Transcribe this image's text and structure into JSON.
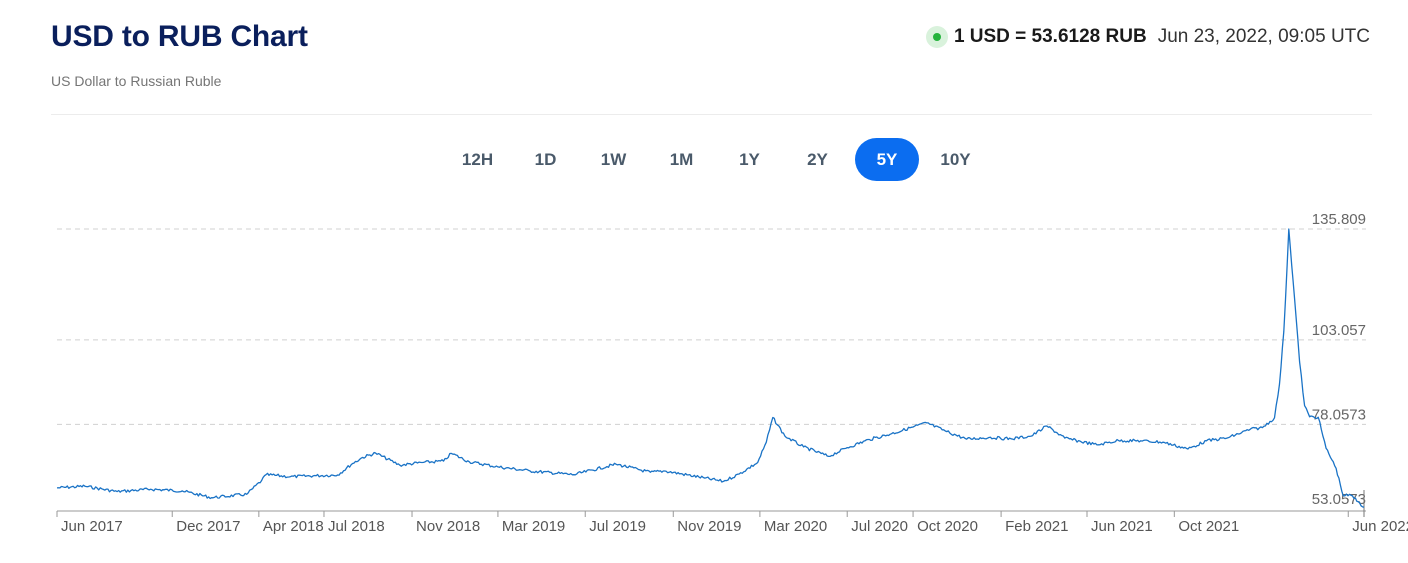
{
  "header": {
    "title": "USD to RUB Chart",
    "subtitle": "US Dollar to Russian Ruble",
    "rate": "1 USD = 53.6128 RUB",
    "timestamp": "Jun 23, 2022, 09:05 UTC",
    "live_indicator_color": "#25b33c"
  },
  "periods": [
    "12H",
    "1D",
    "1W",
    "1M",
    "1Y",
    "2Y",
    "5Y",
    "10Y"
  ],
  "active_period": "5Y",
  "colors": {
    "line": "#1a73c6",
    "active_button": "#0b6df0"
  },
  "chart_data": {
    "type": "line",
    "y_ticks": [
      "135.809",
      "103.057",
      "78.0573",
      "53.0573"
    ],
    "x_tick_labels": [
      "Jun 2017",
      "Dec 2017",
      "Apr 2018",
      "Jul 2018",
      "Nov 2018",
      "Mar 2019",
      "Jul 2019",
      "Nov 2019",
      "Mar 2020",
      "Jul 2020",
      "Oct 2020",
      "Feb 2021",
      "Jun 2021",
      "Oct 2021",
      "Jun 2022"
    ],
    "ylim": [
      53.0573,
      135.809
    ],
    "grid": "horizontal dashed",
    "series": [
      {
        "x": [
          "2017-06-23",
          "2017-08-01",
          "2017-09-15",
          "2017-11-01",
          "2017-12-15",
          "2018-01-25",
          "2018-03-15",
          "2018-04-05",
          "2018-04-11",
          "2018-05-15",
          "2018-06-20",
          "2018-07-20",
          "2018-08-10",
          "2018-08-24",
          "2018-09-11",
          "2018-10-15",
          "2018-11-15",
          "2018-12-15",
          "2018-12-26",
          "2019-01-20",
          "2019-03-01",
          "2019-04-15",
          "2019-06-15",
          "2019-08-13",
          "2019-09-30",
          "2019-10-20",
          "2019-12-15",
          "2020-01-10",
          "2020-02-01",
          "2020-02-27",
          "2020-03-10",
          "2020-03-19",
          "2020-04-05",
          "2020-05-01",
          "2020-06-05",
          "2020-07-01",
          "2020-08-01",
          "2020-09-01",
          "2020-10-01",
          "2020-10-20",
          "2020-11-15",
          "2020-12-15",
          "2021-01-15",
          "2021-02-15",
          "2021-03-15",
          "2021-04-06",
          "2021-05-01",
          "2021-06-15",
          "2021-07-15",
          "2021-08-15",
          "2021-09-15",
          "2021-10-20",
          "2021-11-15",
          "2021-12-15",
          "2022-01-15",
          "2022-02-01",
          "2022-02-18",
          "2022-02-25",
          "2022-03-03",
          "2022-03-10",
          "2022-03-20",
          "2022-03-25",
          "2022-04-01",
          "2022-04-08",
          "2022-04-20",
          "2022-05-01",
          "2022-05-15",
          "2022-05-25",
          "2022-06-05",
          "2022-06-15",
          "2022-06-23"
        ],
        "y": [
          59.3,
          59.8,
          58.2,
          58.9,
          58.4,
          56.4,
          57.4,
          61.5,
          63.2,
          62.6,
          62.9,
          63.1,
          66.5,
          68.3,
          69.6,
          66.0,
          66.8,
          67.2,
          69.5,
          67.0,
          65.5,
          64.3,
          63.2,
          66.3,
          63.9,
          64.3,
          62.2,
          61.2,
          63.4,
          66.8,
          72.8,
          80.1,
          74.6,
          71.4,
          68.6,
          71.2,
          73.6,
          75.3,
          77.3,
          78.5,
          76.1,
          73.7,
          74.2,
          73.8,
          74.6,
          77.6,
          74.0,
          72.0,
          73.3,
          73.2,
          72.8,
          70.8,
          73.2,
          74.1,
          76.6,
          77.1,
          80.0,
          90.0,
          105.5,
          135.8,
          110.0,
          96.5,
          83.6,
          80.3,
          80.2,
          71.0,
          65.1,
          57.0,
          57.1,
          55.2,
          53.6
        ]
      }
    ]
  }
}
